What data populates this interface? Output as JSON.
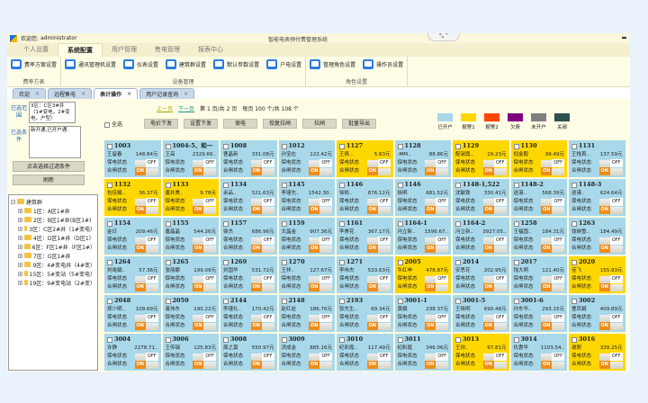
{
  "window": {
    "welcome": "欢迎您:",
    "user": "administrator",
    "title": "智能电表预付费管理系统"
  },
  "ribbon": {
    "tabs": [
      "个人设置",
      "系统配置",
      "用户管理",
      "售电管理",
      "报表中心"
    ],
    "groups": [
      {
        "label": "费率方表",
        "items": [
          "费率方案设置"
        ]
      },
      {
        "label": "设备管理",
        "items": [
          "通讯管理机设置",
          "仪表设置",
          "建筑群设置",
          "默认参数设置",
          "户电设置"
        ]
      },
      {
        "label": "角色设置",
        "items": [
          "管理角色设置",
          "操作员设置"
        ]
      }
    ]
  },
  "doc_tabs": [
    "欢迎",
    "远程售电",
    "表计操作",
    "用户记录查询"
  ],
  "left": {
    "range_label": "已选范围",
    "range_value": "3区：C区3#井（1#变电，2#变电，户型）",
    "cond_label": "已选条件",
    "cond_value": "新开通,已开户通.",
    "filter_button": "点击选择过滤条件",
    "refresh_button": "刷新",
    "tree": {
      "root": "建筑群",
      "children": [
        "1区：A区1#井",
        "2区：B区1#井(B区1#)",
        "3区：C区2#井（1#变电）",
        "4区：D区1#井（D区1）",
        "6区：F区1#井（F区1#）",
        "7区：G区1#井",
        "9区：4#变电井（4#变）",
        "15区：5#变站（5#变电）",
        "19区：9#变电站（2#变）"
      ]
    }
  },
  "pager": {
    "prev": "上一页",
    "next": "下一页",
    "page_text": "第 1 页/共 2 页",
    "per_page_text": "每页 100 个/共 108 个"
  },
  "toolbar": {
    "select_all": "全选",
    "buttons": [
      "电价下发",
      "设置下发",
      "保电",
      "恢复拉闸",
      "拉闸",
      "批量导出"
    ]
  },
  "legend": [
    {
      "label": "已开户",
      "color": "#a8d8ea"
    },
    {
      "label": "报警1",
      "color": "#ffd700"
    },
    {
      "label": "报警2",
      "color": "#ff4500"
    },
    {
      "label": "欠费",
      "color": "#800080"
    },
    {
      "label": "未开户",
      "color": "#808080"
    },
    {
      "label": "关阀",
      "color": "#2f4f4f"
    }
  ],
  "card_labels": {
    "protect": "保电状态",
    "switch": "合闸状态",
    "off": "OFF",
    "on": "ON"
  },
  "meters": [
    {
      "no": "1003",
      "name": "王留春",
      "bal": "148.84元",
      "s": "a"
    },
    {
      "no": "1004-5、和一",
      "name": "王高",
      "bal": "2329.66..",
      "s": "a"
    },
    {
      "no": "1008",
      "name": "曹晶新",
      "bal": "331.08元",
      "s": "a"
    },
    {
      "no": "1012",
      "name": "孙宝在",
      "bal": "122.42元",
      "s": "a"
    },
    {
      "no": "1127",
      "name": "王倩...",
      "bal": "5.83元",
      "s": "y"
    },
    {
      "no": "1128",
      "name": "-MM..",
      "bal": "88.86元",
      "s": "a"
    },
    {
      "no": "1129",
      "name": "配淑霞..",
      "bal": "19.23元",
      "s": "y"
    },
    {
      "no": "1130",
      "name": "倪金毅",
      "bal": "99.49元",
      "s": "y"
    },
    {
      "no": "1131",
      "name": "王栈首..",
      "bal": "137.59元",
      "s": "a"
    },
    {
      "no": "1132",
      "name": "包佳娟..",
      "bal": "36.37元",
      "s": "y"
    },
    {
      "no": "1133",
      "name": "唐井美..",
      "bal": "9.78元",
      "s": "y"
    },
    {
      "no": "1134",
      "name": "余品..",
      "bal": "521.63元",
      "s": "a"
    },
    {
      "no": "1145",
      "name": "李瑾先..",
      "bal": "1542.30..",
      "s": "a"
    },
    {
      "no": "1146",
      "name": "徐彬..",
      "bal": "876.12元",
      "s": "a"
    },
    {
      "no": "1146",
      "name": "徐明",
      "bal": "681.52元",
      "s": "a"
    },
    {
      "no": "1148-1,522",
      "name": "沈敏铁",
      "bal": "330.41元",
      "s": "a"
    },
    {
      "no": "1148-2",
      "name": "送港..",
      "bal": "568.39元",
      "s": "a"
    },
    {
      "no": "1148-3",
      "name": "送港..",
      "bal": "624.64元",
      "s": "a"
    },
    {
      "no": "1154",
      "name": "金日",
      "bal": "209.46元",
      "s": "a"
    },
    {
      "no": "1155",
      "name": "唐晶晶",
      "bal": "544.26元",
      "s": "a"
    },
    {
      "no": "1157",
      "name": "徐杰",
      "bal": "686.96元",
      "s": "a"
    },
    {
      "no": "1159",
      "name": "文晶金",
      "bal": "907.36元",
      "s": "a"
    },
    {
      "no": "1161",
      "name": "李美花",
      "bal": "367.17元",
      "s": "a"
    },
    {
      "no": "1164-1",
      "name": "冯立新..",
      "bal": "1596.67..",
      "s": "a"
    },
    {
      "no": "1164-2",
      "name": "冯立新..",
      "bal": "3927.05..",
      "s": "a"
    },
    {
      "no": "1258",
      "name": "王福国..",
      "bal": "184.31元",
      "s": "a"
    },
    {
      "no": "1263",
      "name": "钱映雪..",
      "bal": "184.49元",
      "s": "a"
    },
    {
      "no": "1264",
      "name": "刘晓娟..",
      "bal": "57.36元",
      "s": "a"
    },
    {
      "no": "1265",
      "name": "张丽娜",
      "bal": "199.09元",
      "s": "a"
    },
    {
      "no": "1269",
      "name": "刘国华",
      "bal": "531.72元",
      "s": "a"
    },
    {
      "no": "1270",
      "name": "王祥..",
      "bal": "127.67元",
      "s": "a"
    },
    {
      "no": "1271",
      "name": "李伟杰",
      "bal": "533.63元",
      "s": "a"
    },
    {
      "no": "2005",
      "name": "牛红申",
      "bal": "478.87元",
      "s": "y"
    },
    {
      "no": "2014",
      "name": "安思花",
      "bal": "202.95元",
      "s": "a"
    },
    {
      "no": "2017",
      "name": "钱大明",
      "bal": "121.40元",
      "s": "a"
    },
    {
      "no": "2020",
      "name": "佳飞",
      "bal": "155.93元",
      "s": "y"
    },
    {
      "no": "2048",
      "name": "郑少明..",
      "bal": "109.69元",
      "s": "a"
    },
    {
      "no": "2050",
      "name": "袁伟东",
      "bal": "190.22元",
      "s": "a"
    },
    {
      "no": "2144",
      "name": "李瑾礼..",
      "bal": "170.42元",
      "s": "a"
    },
    {
      "no": "2148",
      "name": "赵红岩",
      "bal": "186.76元",
      "s": "a"
    },
    {
      "no": "2193",
      "name": "张先生..",
      "bal": "69.34元",
      "s": "a"
    },
    {
      "no": "3001-1",
      "name": "黄娟",
      "bal": "238.37元",
      "s": "a"
    },
    {
      "no": "3001-5",
      "name": "王晓明",
      "bal": "690.48元",
      "s": "a"
    },
    {
      "no": "3001-6",
      "name": "孙东华..",
      "bal": "293.15元",
      "s": "a"
    },
    {
      "no": "3002",
      "name": "曹凤娟",
      "bal": "409.89元",
      "s": "a"
    },
    {
      "no": "3004",
      "name": "许静",
      "bal": "2278.71..",
      "s": "a"
    },
    {
      "no": "3006",
      "name": "王传瑞",
      "bal": "125.83元",
      "s": "a"
    },
    {
      "no": "3008",
      "name": "周之莫",
      "bal": "550.97元",
      "s": "a"
    },
    {
      "no": "3009",
      "name": "洪成金",
      "bal": "885.16元",
      "s": "a"
    },
    {
      "no": "3010",
      "name": "纪彩霞..",
      "bal": "117.49元",
      "s": "a"
    },
    {
      "no": "3011",
      "name": "纪彩霞",
      "bal": "346.06元",
      "s": "a"
    },
    {
      "no": "3013",
      "name": "王欣..",
      "bal": "97.81元",
      "s": "y"
    },
    {
      "no": "3014",
      "name": "仇惠华",
      "bal": "1103.54..",
      "s": "a"
    },
    {
      "no": "3016",
      "name": "谢刚",
      "bal": "339.25元",
      "s": "y"
    }
  ]
}
